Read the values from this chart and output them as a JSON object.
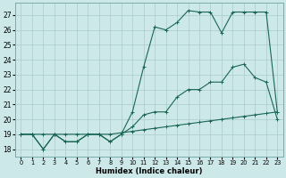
{
  "xlabel": "Humidex (Indice chaleur)",
  "background_color": "#cce8e8",
  "grid_color": "#aacccc",
  "line_color": "#1a6655",
  "xlim": [
    -0.5,
    23.5
  ],
  "ylim": [
    17.5,
    27.8
  ],
  "yticks": [
    18,
    19,
    20,
    21,
    22,
    23,
    24,
    25,
    26,
    27
  ],
  "xticks": [
    0,
    1,
    2,
    3,
    4,
    5,
    6,
    7,
    8,
    9,
    10,
    11,
    12,
    13,
    14,
    15,
    16,
    17,
    18,
    19,
    20,
    21,
    22,
    23
  ],
  "line1_x": [
    0,
    1,
    2,
    3,
    4,
    5,
    6,
    7,
    8,
    9,
    10,
    11,
    12,
    13,
    14,
    15,
    16,
    17,
    18,
    19,
    20,
    21,
    22,
    23
  ],
  "line1_y": [
    19.0,
    19.0,
    19.0,
    19.0,
    19.0,
    19.0,
    19.0,
    19.0,
    19.0,
    19.1,
    19.2,
    19.3,
    19.4,
    19.5,
    19.6,
    19.7,
    19.8,
    19.9,
    20.0,
    20.1,
    20.2,
    20.3,
    20.4,
    20.5
  ],
  "line2_x": [
    0,
    1,
    2,
    3,
    4,
    5,
    6,
    7,
    8,
    9,
    10,
    11,
    12,
    13,
    14,
    15,
    16,
    17,
    18,
    19,
    20,
    21,
    22,
    23
  ],
  "line2_y": [
    19.0,
    19.0,
    18.0,
    19.0,
    18.5,
    18.5,
    19.0,
    19.0,
    18.5,
    19.0,
    19.5,
    20.3,
    20.5,
    20.5,
    21.5,
    22.0,
    22.0,
    22.5,
    22.5,
    23.5,
    23.7,
    22.8,
    22.5,
    20.0
  ],
  "line3_x": [
    0,
    1,
    2,
    3,
    4,
    5,
    6,
    7,
    8,
    9,
    10,
    11,
    12,
    13,
    14,
    15,
    16,
    17,
    18,
    19,
    20,
    21,
    22,
    23
  ],
  "line3_y": [
    19.0,
    19.0,
    18.0,
    19.0,
    18.5,
    18.5,
    19.0,
    19.0,
    18.5,
    19.0,
    20.5,
    23.5,
    26.2,
    26.0,
    26.5,
    27.3,
    27.2,
    27.2,
    25.8,
    27.2,
    27.2,
    27.2,
    27.2,
    20.5
  ]
}
